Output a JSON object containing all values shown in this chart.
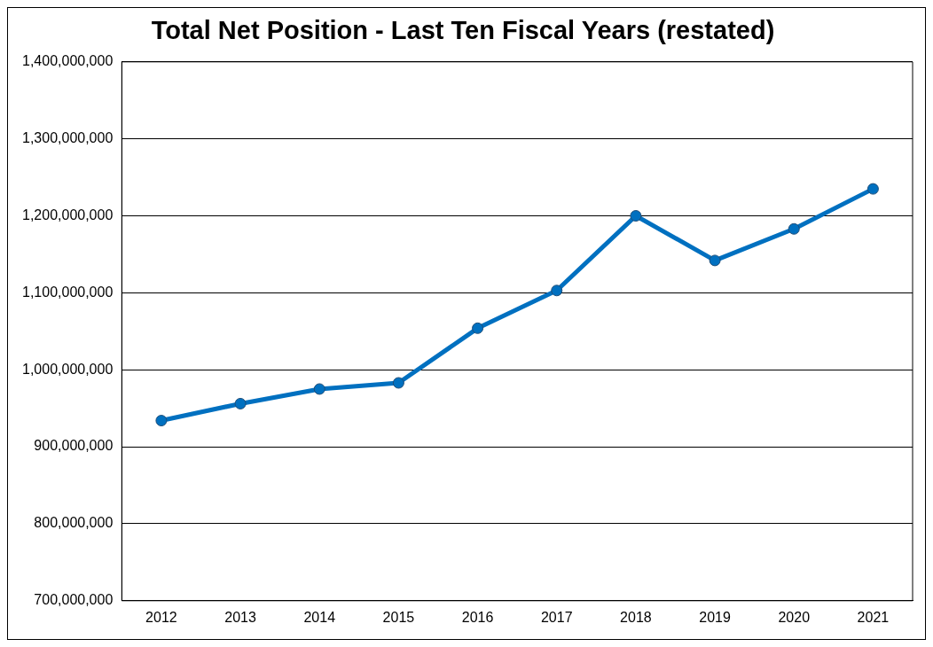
{
  "chart_data": {
    "type": "line",
    "title": "Total Net Position - Last Ten Fiscal Years (restated)",
    "categories": [
      "2012",
      "2013",
      "2014",
      "2015",
      "2016",
      "2017",
      "2018",
      "2019",
      "2020",
      "2021"
    ],
    "series": [
      {
        "color": "#0070c0",
        "values": [
          934000000,
          956000000,
          975000000,
          983000000,
          1054000000,
          1103000000,
          1200000000,
          1142000000,
          1183000000,
          1235000000
        ]
      }
    ],
    "ylim": [
      700000000,
      1400000000
    ],
    "yticks": [
      {
        "value": 700000000,
        "label": "700,000,000"
      },
      {
        "value": 800000000,
        "label": "800,000,000"
      },
      {
        "value": 900000000,
        "label": "900,000,000"
      },
      {
        "value": 1000000000,
        "label": "1,000,000,000"
      },
      {
        "value": 1100000000,
        "label": "1,100,000,000"
      },
      {
        "value": 1200000000,
        "label": "1,200,000,000"
      },
      {
        "value": 1300000000,
        "label": "1,300,000,000"
      },
      {
        "value": 1400000000,
        "label": "1,400,000,000"
      }
    ],
    "grid": "y",
    "legend": false,
    "marker": "circle",
    "line_style": "solid"
  }
}
